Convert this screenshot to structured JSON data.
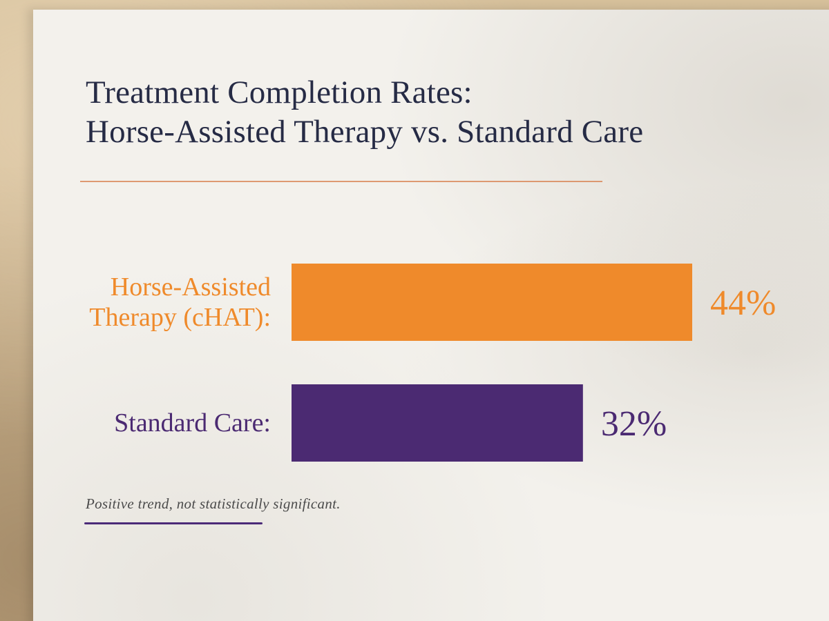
{
  "chart_data": {
    "type": "bar",
    "orientation": "horizontal",
    "title": [
      "Treatment Completion Rates:",
      "Horse-Assisted Therapy vs. Standard Care"
    ],
    "unit": "%",
    "xlim": [
      0,
      44
    ],
    "categories": [
      {
        "label_lines": [
          "Horse-Assisted",
          "Therapy (cHAT):"
        ],
        "value": 44,
        "value_label": "44%",
        "color": "#ef8a2b"
      },
      {
        "label_lines": [
          "Standard Care:"
        ],
        "value": 32,
        "value_label": "32%",
        "color": "#4b2a72"
      }
    ],
    "annotation": "Positive trend, not statistically significant.",
    "colors": {
      "title": "#262b45",
      "accent_rule": "#d98a5c",
      "note_rule": "#4b2a78"
    }
  }
}
